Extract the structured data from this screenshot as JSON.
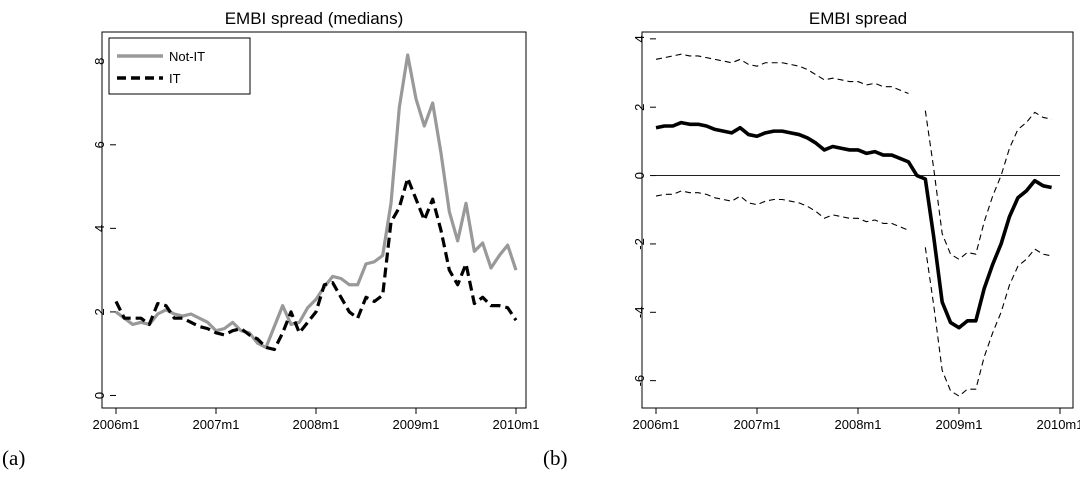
{
  "chart_data": [
    {
      "type": "line",
      "title": "EMBI spread (medians)",
      "panel_label": "(a)",
      "xlabel": "",
      "ylabel": "",
      "x_ticks": [
        "2006m1",
        "2007m1",
        "2008m1",
        "2009m1",
        "2010m1"
      ],
      "y_ticks": [
        "0",
        "2",
        "4",
        "6",
        "8"
      ],
      "xlim": [
        0,
        48
      ],
      "ylim": [
        -0.3,
        8.7
      ],
      "grid": false,
      "legend_position": "top-left",
      "series": [
        {
          "name": "Not-IT",
          "color": "#999999",
          "style": "solid",
          "values": [
            2.0,
            1.85,
            1.7,
            1.75,
            1.7,
            1.95,
            2.05,
            1.95,
            1.9,
            1.95,
            1.85,
            1.75,
            1.55,
            1.6,
            1.75,
            1.55,
            1.5,
            1.25,
            1.15,
            1.65,
            2.15,
            1.7,
            1.75,
            2.1,
            2.3,
            2.6,
            2.85,
            2.8,
            2.65,
            2.65,
            3.15,
            3.2,
            3.35,
            4.6,
            6.9,
            8.15,
            7.1,
            6.45,
            7.0,
            5.8,
            4.4,
            3.7,
            4.6,
            3.45,
            3.65,
            3.05,
            3.35,
            3.6,
            3.0
          ]
        },
        {
          "name": "IT",
          "color": "#000000",
          "style": "dashed",
          "values": [
            2.25,
            1.85,
            1.85,
            1.85,
            1.7,
            2.2,
            2.15,
            1.85,
            1.85,
            1.75,
            1.65,
            1.6,
            1.5,
            1.45,
            1.55,
            1.6,
            1.45,
            1.35,
            1.15,
            1.1,
            1.5,
            2.0,
            1.5,
            1.75,
            2.0,
            2.65,
            2.7,
            2.35,
            2.0,
            1.85,
            2.35,
            2.25,
            2.4,
            4.15,
            4.5,
            5.2,
            4.7,
            4.2,
            4.7,
            3.95,
            3.0,
            2.65,
            3.15,
            2.2,
            2.35,
            2.15,
            2.15,
            2.1,
            1.8
          ]
        }
      ]
    },
    {
      "type": "line",
      "title": "EMBI spread",
      "panel_label": "(b)",
      "xlabel": "",
      "ylabel": "",
      "x_ticks": [
        "2006m1",
        "2007m1",
        "2008m1",
        "2009m1",
        "2010m1"
      ],
      "y_ticks": [
        "-6",
        "-4",
        "-2",
        "0",
        "2",
        "4"
      ],
      "xlim": [
        0,
        48
      ],
      "ylim": [
        -6.8,
        4.2
      ],
      "grid": false,
      "reference_line": 0,
      "series": [
        {
          "name": "",
          "color": "#000000",
          "style": "solid-thick",
          "values": [
            1.4,
            1.45,
            1.45,
            1.55,
            1.5,
            1.5,
            1.45,
            1.35,
            1.3,
            1.25,
            1.4,
            1.2,
            1.15,
            1.25,
            1.3,
            1.3,
            1.25,
            1.2,
            1.1,
            0.95,
            0.75,
            0.85,
            0.8,
            0.75,
            0.75,
            0.65,
            0.7,
            0.6,
            0.6,
            0.5,
            0.4,
            0.0,
            -0.1,
            -1.8,
            -3.7,
            -4.3,
            -4.45,
            -4.25,
            -4.25,
            -3.3,
            -2.6,
            -2.0,
            -1.2,
            -0.65,
            -0.45,
            -0.15,
            -0.3,
            -0.35
          ]
        },
        {
          "name": "",
          "color": "#000000",
          "style": "dashed-thin",
          "segments": [
            [
              3.4,
              3.45,
              3.5,
              3.55,
              3.5,
              3.5,
              3.45,
              3.4,
              3.35,
              3.3,
              3.4,
              3.25,
              3.2,
              3.3,
              3.3,
              3.3,
              3.25,
              3.2,
              3.1,
              2.95,
              2.8,
              2.85,
              2.8,
              2.75,
              2.75,
              2.65,
              2.7,
              2.6,
              2.6,
              2.5,
              2.4
            ],
            [
              1.9,
              0.2,
              -1.7,
              -2.3,
              -2.45,
              -2.25,
              -2.3,
              -1.35,
              -0.6,
              0.0,
              0.8,
              1.35,
              1.55,
              1.85,
              1.7,
              1.65
            ]
          ],
          "segment_starts": [
            0,
            32
          ]
        },
        {
          "name": "",
          "color": "#000000",
          "style": "dashed-thin",
          "segments": [
            [
              -0.6,
              -0.55,
              -0.55,
              -0.45,
              -0.5,
              -0.5,
              -0.55,
              -0.65,
              -0.7,
              -0.75,
              -0.6,
              -0.8,
              -0.85,
              -0.75,
              -0.7,
              -0.7,
              -0.75,
              -0.8,
              -0.9,
              -1.05,
              -1.25,
              -1.15,
              -1.2,
              -1.25,
              -1.25,
              -1.35,
              -1.3,
              -1.4,
              -1.4,
              -1.5,
              -1.6
            ],
            [
              -2.1,
              -3.8,
              -5.7,
              -6.3,
              -6.45,
              -6.25,
              -6.25,
              -5.3,
              -4.6,
              -4.0,
              -3.2,
              -2.65,
              -2.45,
              -2.15,
              -2.3,
              -2.35
            ]
          ],
          "segment_starts": [
            0,
            32
          ]
        }
      ]
    }
  ]
}
